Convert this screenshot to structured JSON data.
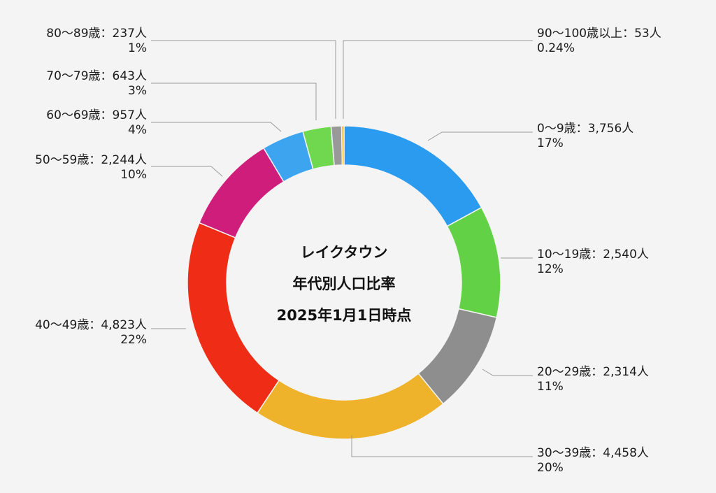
{
  "chart_data": {
    "type": "pie",
    "variant": "donut",
    "title_lines": [
      "レイクタウン",
      "年代別人口比率",
      "2025年1月1日時点"
    ],
    "slices": [
      {
        "name": "0〜9歳",
        "value": 3756,
        "percent": "17%",
        "color": "#2a9bef",
        "label": "0〜9歳：3,756人",
        "pct_label": "17%"
      },
      {
        "name": "10〜19歳",
        "value": 2540,
        "percent": "12%",
        "color": "#62d145",
        "label": "10〜19歳：2,540人",
        "pct_label": "12%"
      },
      {
        "name": "20〜29歳",
        "value": 2314,
        "percent": "11%",
        "color": "#8e8e8e",
        "label": "20〜29歳：2,314人",
        "pct_label": "11%"
      },
      {
        "name": "30〜39歳",
        "value": 4458,
        "percent": "20%",
        "color": "#eeb22b",
        "label": "30〜39歳：4,458人",
        "pct_label": "20%"
      },
      {
        "name": "40〜49歳",
        "value": 4823,
        "percent": "22%",
        "color": "#ef2d16",
        "label": "40〜49歳：4,823人",
        "pct_label": "22%"
      },
      {
        "name": "50〜59歳",
        "value": 2244,
        "percent": "10%",
        "color": "#cf1d7b",
        "label": "50〜59歳：2,244人",
        "pct_label": "10%"
      },
      {
        "name": "60〜69歳",
        "value": 957,
        "percent": "4%",
        "color": "#3da4ef",
        "label": "60〜69歳：957人",
        "pct_label": "4%"
      },
      {
        "name": "70〜79歳",
        "value": 643,
        "percent": "3%",
        "color": "#6fd84e",
        "label": "70〜79歳：643人",
        "pct_label": "3%"
      },
      {
        "name": "80〜89歳",
        "value": 237,
        "percent": "1%",
        "color": "#999999",
        "label": "80〜89歳：237人",
        "pct_label": "1%"
      },
      {
        "name": "90〜100歳以上",
        "value": 53,
        "percent": "0.24%",
        "color": "#eeb22b",
        "label": "90〜100歳以上：53人",
        "pct_label": "0.24%"
      }
    ]
  }
}
